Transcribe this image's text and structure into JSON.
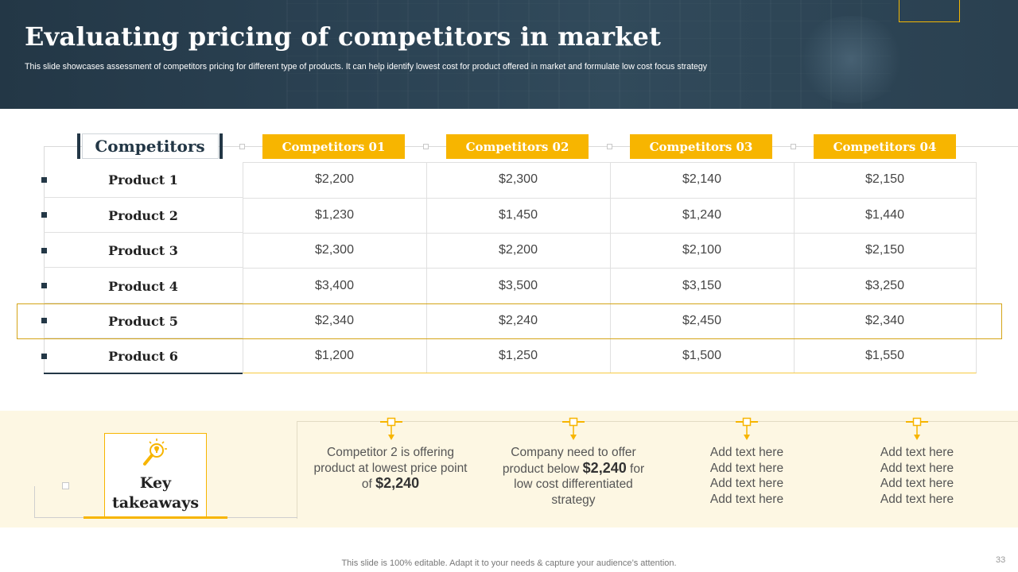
{
  "header": {
    "title": "Evaluating pricing of competitors in market",
    "subtitle": "This slide showcases assessment of competitors pricing for different type  of products. It can help identify lowest cost for product offered in market and formulate low cost focus strategy"
  },
  "table": {
    "row_header_label": "Competitors",
    "columns": [
      "Competitors 01",
      "Competitors 02",
      "Competitors 03",
      "Competitors 04"
    ],
    "rows": [
      {
        "label": "Product 1",
        "values": [
          "$2,200",
          "$2,300",
          "$2,140",
          "$2,150"
        ]
      },
      {
        "label": "Product 2",
        "values": [
          "$1,230",
          "$1,450",
          "$1,240",
          "$1,440"
        ]
      },
      {
        "label": "Product 3",
        "values": [
          "$2,300",
          "$2,200",
          "$2,100",
          "$2,150"
        ]
      },
      {
        "label": "Product 4",
        "values": [
          "$3,400",
          "$3,500",
          "$3,150",
          "$3,250"
        ]
      },
      {
        "label": "Product 5",
        "values": [
          "$2,340",
          "$2,240",
          "$2,450",
          "$2,340"
        ]
      },
      {
        "label": "Product 6",
        "values": [
          "$1,200",
          "$1,250",
          "$1,500",
          "$1,550"
        ]
      }
    ],
    "highlighted_row": "Product 5"
  },
  "takeaways": {
    "label_line1": "Key",
    "label_line2": "takeaways",
    "icon": "lightbulb-magnifier-icon",
    "items": [
      {
        "pre": "Competitor 2 is offering product at lowest price point of ",
        "bold": "$2,240",
        "post": ""
      },
      {
        "pre": "Company need to offer product below ",
        "bold": "$2,240",
        "post": " for low cost differentiated strategy"
      },
      {
        "lines": [
          "Add text here",
          "Add text here",
          "Add text here",
          "Add text here"
        ]
      },
      {
        "lines": [
          "Add text here",
          "Add text here",
          "Add text here",
          "Add text here"
        ]
      }
    ]
  },
  "footer": {
    "note": "This slide is 100% editable. Adapt it to your needs & capture your audience’s attention.",
    "page_number": "33"
  },
  "colors": {
    "header_bg": "#2b4253",
    "accent": "#f7b500",
    "dark": "#233746",
    "takeaway_bg": "#fdf7e3"
  }
}
